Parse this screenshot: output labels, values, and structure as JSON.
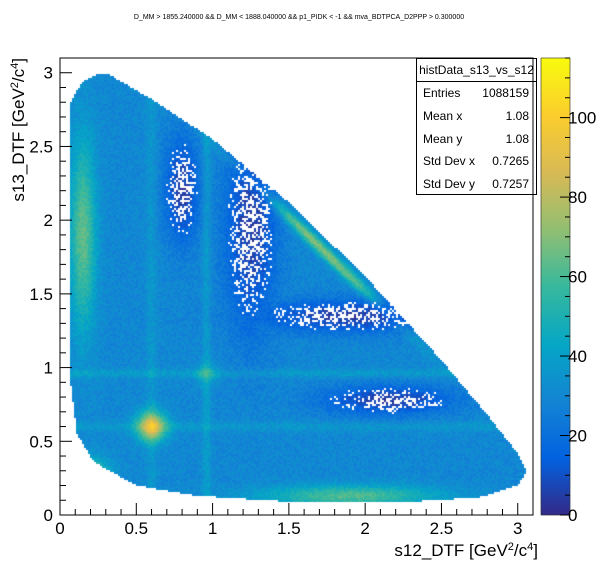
{
  "cut_title": "D_MM > 1855.240000 && D_MM < 1888.040000 && p1_PIDK < -1 && mva_BDTPCA_D2PPP > 0.300000",
  "stats_box": {
    "name": "histData_s13_vs_s12",
    "rows": [
      {
        "key": "Entries",
        "value": "1088159"
      },
      {
        "key": "Mean x",
        "value": "1.08"
      },
      {
        "key": "Mean y",
        "value": "1.08"
      },
      {
        "key": "Std Dev x",
        "value": "0.7265"
      },
      {
        "key": "Std Dev y",
        "value": "0.7257"
      }
    ]
  },
  "chart_data": {
    "type": "heatmap",
    "xlabel": "s12_DTF [GeV²/c⁴]",
    "ylabel": "s13_DTF [GeV²/c⁴]",
    "xlim": [
      0,
      3.1
    ],
    "ylim": [
      0,
      3.1
    ],
    "x_ticks": [
      0,
      0.5,
      1,
      1.5,
      2,
      2.5,
      3
    ],
    "x_tick_labels": [
      "0",
      "0.5",
      "1",
      "1.5",
      "2",
      "2.5",
      "3"
    ],
    "y_ticks": [
      0,
      0.5,
      1,
      1.5,
      2,
      2.5,
      3
    ],
    "y_tick_labels": [
      "0",
      "0.5",
      "1",
      "1.5",
      "2",
      "2.5",
      "3"
    ],
    "z_range": [
      0,
      115
    ],
    "z_ticks": [
      0,
      20,
      40,
      60,
      80,
      100
    ],
    "z_tick_labels": [
      "0",
      "20",
      "40",
      "60",
      "80",
      "100"
    ],
    "colormap": [
      "#352a87",
      "#0363e1",
      "#1485d4",
      "#06a7c6",
      "#38b99e",
      "#92bf73",
      "#d9ba56",
      "#fcce2e",
      "#f9fb0e"
    ],
    "features": {
      "horizontal_bands_y": [
        0.96,
        0.6
      ],
      "vertical_bands_x": [
        0.96,
        0.6
      ],
      "hot_spot": [
        0.6,
        0.6
      ],
      "depleted_regions": [
        {
          "x": 0.8,
          "y": 2.2
        },
        {
          "x": 1.2,
          "y": 1.95
        },
        {
          "x": 1.9,
          "y": 1.35
        },
        {
          "x": 2.1,
          "y": 0.78
        }
      ]
    }
  }
}
